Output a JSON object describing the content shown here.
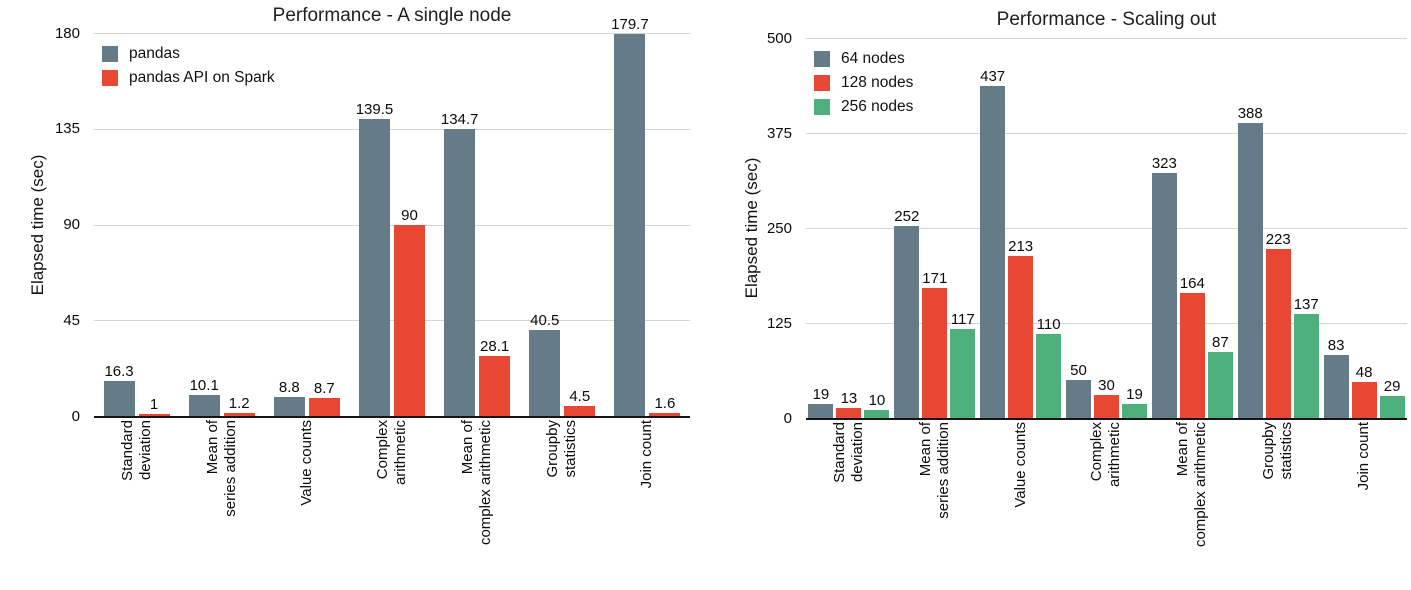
{
  "chart_data": [
    {
      "type": "bar",
      "title": "Performance - A single node",
      "ylabel": "Elapsed time (sec)",
      "ylim": [
        0,
        180
      ],
      "yticks": [
        0,
        45,
        90,
        135,
        180
      ],
      "grid": true,
      "legend_position": "top-left",
      "categories": [
        "Standard\ndeviation",
        "Mean of\nseries addition",
        "Value counts",
        "Complex\narithmetic",
        "Mean of\ncomplex arithmetic",
        "Groupby\nstatistics",
        "Join count"
      ],
      "series": [
        {
          "name": "pandas",
          "color": "#667B88",
          "values": [
            16.3,
            10.1,
            8.8,
            139.5,
            134.7,
            40.5,
            179.7
          ]
        },
        {
          "name": "pandas API on Spark",
          "color": "#E84733",
          "values": [
            1,
            1.2,
            8.7,
            90,
            28.1,
            4.5,
            1.6
          ]
        }
      ]
    },
    {
      "type": "bar",
      "title": "Performance - Scaling out",
      "ylabel": "Elapsed time (sec)",
      "ylim": [
        0,
        500
      ],
      "yticks": [
        0,
        125,
        250,
        375,
        500
      ],
      "grid": true,
      "legend_position": "top-left",
      "categories": [
        "Standard\ndeviation",
        "Mean of\nseries addition",
        "Value counts",
        "Complex\narithmetic",
        "Mean of\ncomplex arithmetic",
        "Groupby\nstatistics",
        "Join count"
      ],
      "series": [
        {
          "name": "64 nodes",
          "color": "#667B88",
          "values": [
            19,
            252,
            437,
            50,
            323,
            388,
            83
          ]
        },
        {
          "name": "128 nodes",
          "color": "#E84733",
          "values": [
            13,
            171,
            213,
            30,
            164,
            223,
            48
          ]
        },
        {
          "name": "256 nodes",
          "color": "#4DAF7C",
          "values": [
            10,
            117,
            110,
            19,
            87,
            137,
            29
          ]
        }
      ]
    }
  ]
}
